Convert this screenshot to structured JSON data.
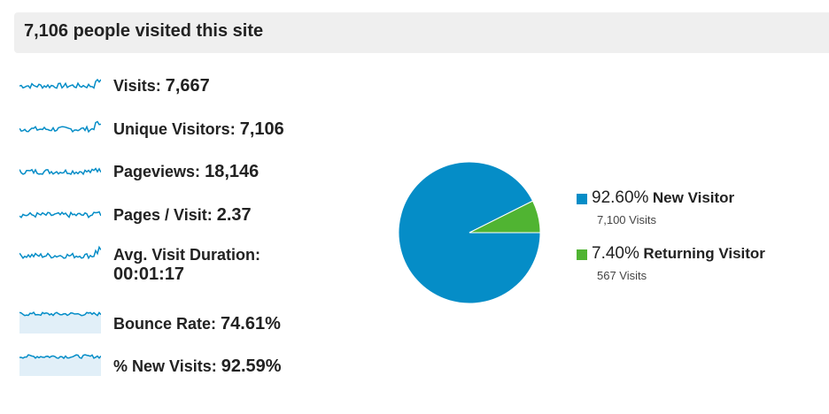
{
  "header": {
    "title": "7,106 people visited this site"
  },
  "metrics": [
    {
      "label": "Visits:",
      "value": "7,667"
    },
    {
      "label": "Unique Visitors:",
      "value": "7,106"
    },
    {
      "label": "Pageviews:",
      "value": "18,146"
    },
    {
      "label": "Pages / Visit:",
      "value": "2.37"
    },
    {
      "label": "Avg. Visit Duration:",
      "value": "00:01:17"
    },
    {
      "label": "Bounce Rate:",
      "value": "74.61%"
    },
    {
      "label": "% New Visits:",
      "value": "92.59%"
    }
  ],
  "chart_data": {
    "type": "pie",
    "categories": [
      "New Visitor",
      "Returning Visitor"
    ],
    "values": [
      92.6,
      7.4
    ],
    "value_labels": [
      "92.60%",
      "7.40%"
    ],
    "sublabels": [
      "7,100 Visits",
      "567 Visits"
    ],
    "colors": [
      "#058dc7",
      "#50b432"
    ]
  }
}
